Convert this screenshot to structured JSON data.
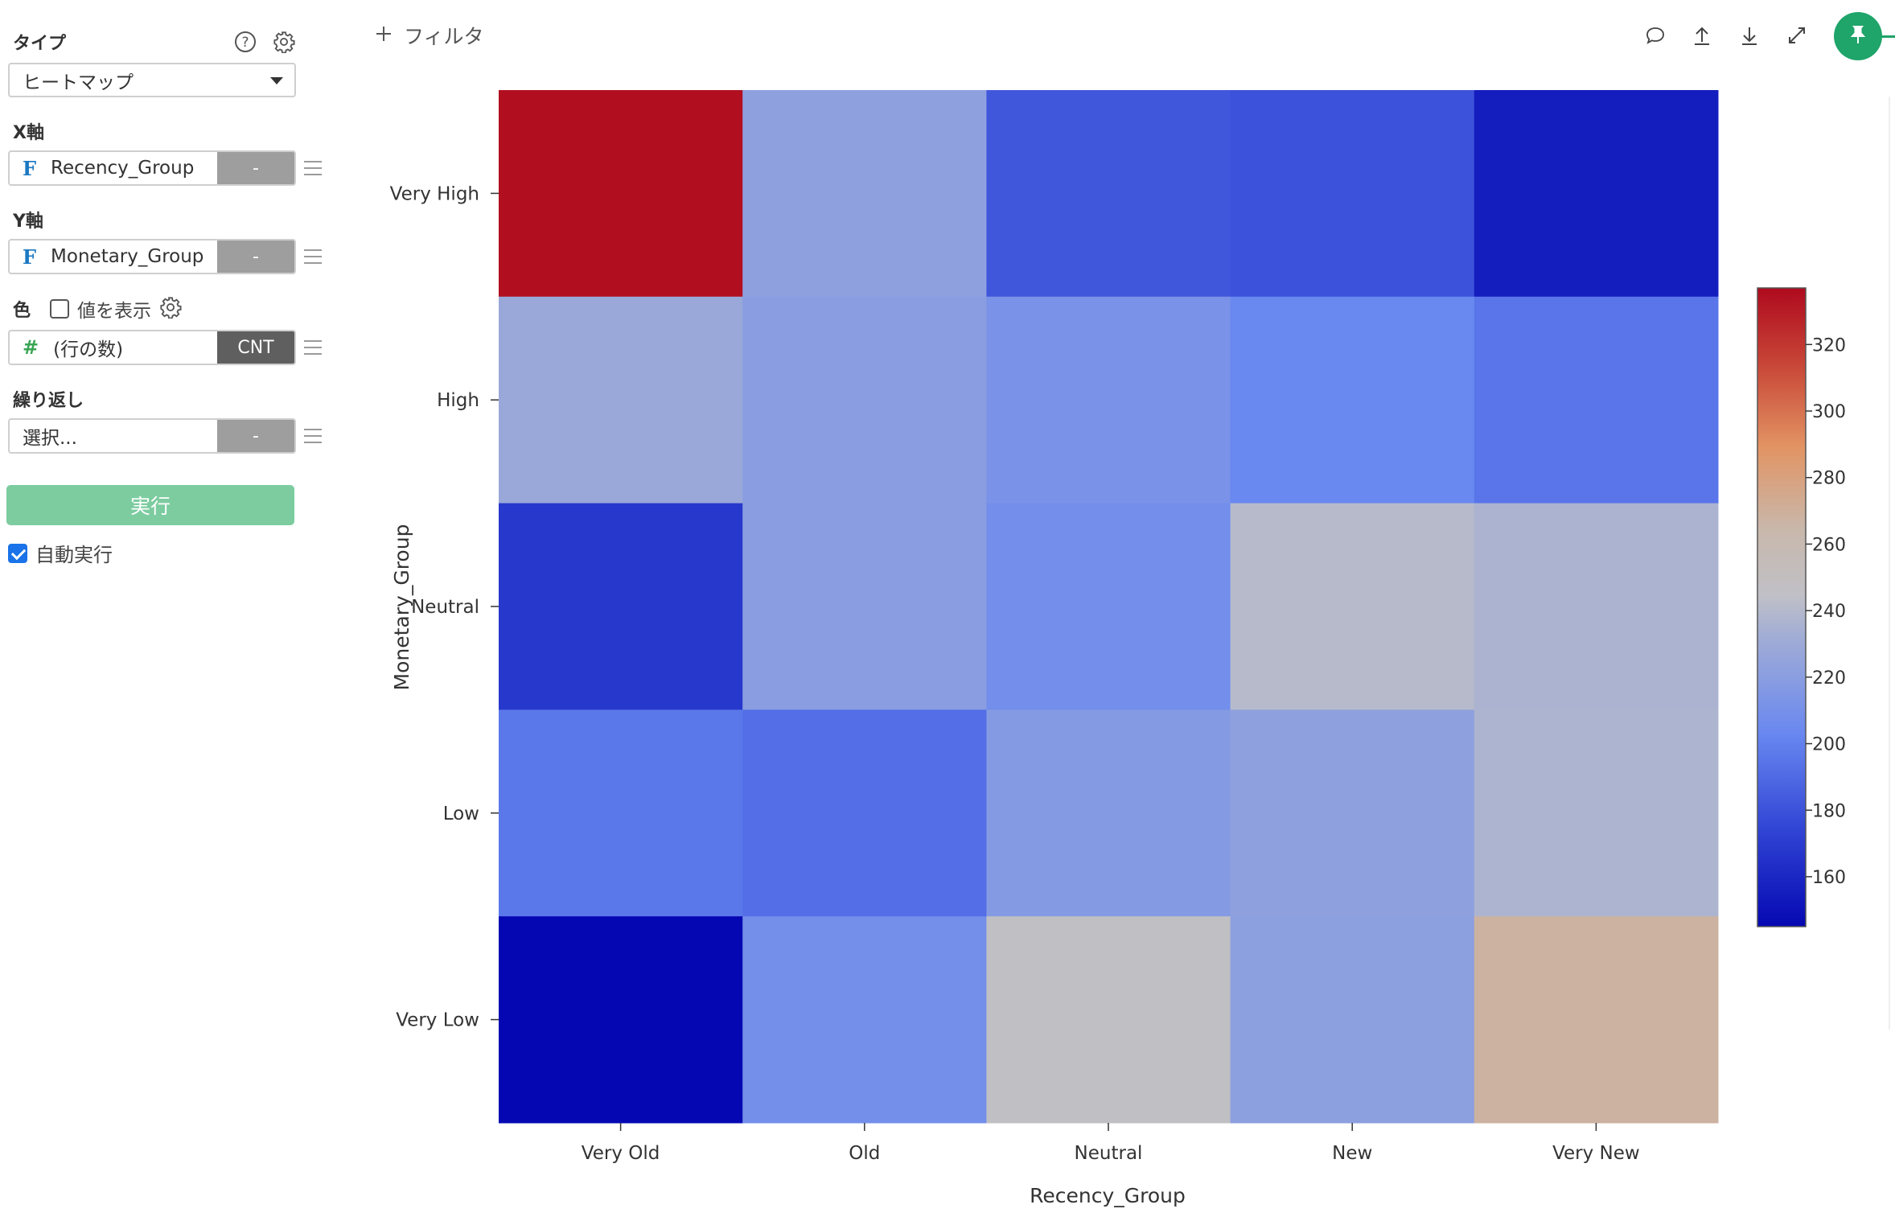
{
  "sidebar": {
    "type_section": {
      "label": "タイプ",
      "help_icon": "question-circle-icon",
      "settings_icon": "gear-icon",
      "selected": "ヒートマップ"
    },
    "x_axis": {
      "label": "X軸",
      "type_badge": "F",
      "field": "Recency_Group",
      "agg": "-"
    },
    "y_axis": {
      "label": "Y軸",
      "type_badge": "F",
      "field": "Monetary_Group",
      "agg": "-"
    },
    "color": {
      "label": "色",
      "show_values_label": "値を表示",
      "show_values_checked": false,
      "type_badge": "#",
      "field": "(行の数)",
      "agg": "CNT"
    },
    "repeat": {
      "label": "繰り返し",
      "placeholder": "選択...",
      "agg": "-"
    },
    "run_button": "実行",
    "auto_run": {
      "label": "自動実行",
      "checked": true
    }
  },
  "topbar": {
    "filter_label": "フィルタ",
    "icons": [
      "comment-icon",
      "upload-icon",
      "download-icon",
      "expand-icon",
      "pin-icon"
    ]
  },
  "colors": {
    "accent": "#1fa46a",
    "run_button": "#7ccca0",
    "field_blue": "#1a78c2",
    "numeric_green": "#3aa655"
  },
  "chart_data": {
    "type": "heatmap",
    "xlabel": "Recency_Group",
    "ylabel": "Monetary_Group",
    "x_categories": [
      "Very Old",
      "Old",
      "Neutral",
      "New",
      "Very New"
    ],
    "y_categories": [
      "Very High",
      "High",
      "Neutral",
      "Low",
      "Very Low"
    ],
    "values": [
      [
        335,
        222,
        182,
        180,
        155
      ],
      [
        228,
        220,
        212,
        203,
        195
      ],
      [
        168,
        220,
        208,
        241,
        236
      ],
      [
        196,
        192,
        217,
        222,
        237
      ],
      [
        145,
        209,
        246,
        221,
        268
      ]
    ],
    "colorscale": "coolwarm",
    "color_range": [
      145,
      337
    ],
    "colorbar_ticks": [
      160,
      180,
      200,
      220,
      240,
      260,
      280,
      300,
      320
    ]
  }
}
